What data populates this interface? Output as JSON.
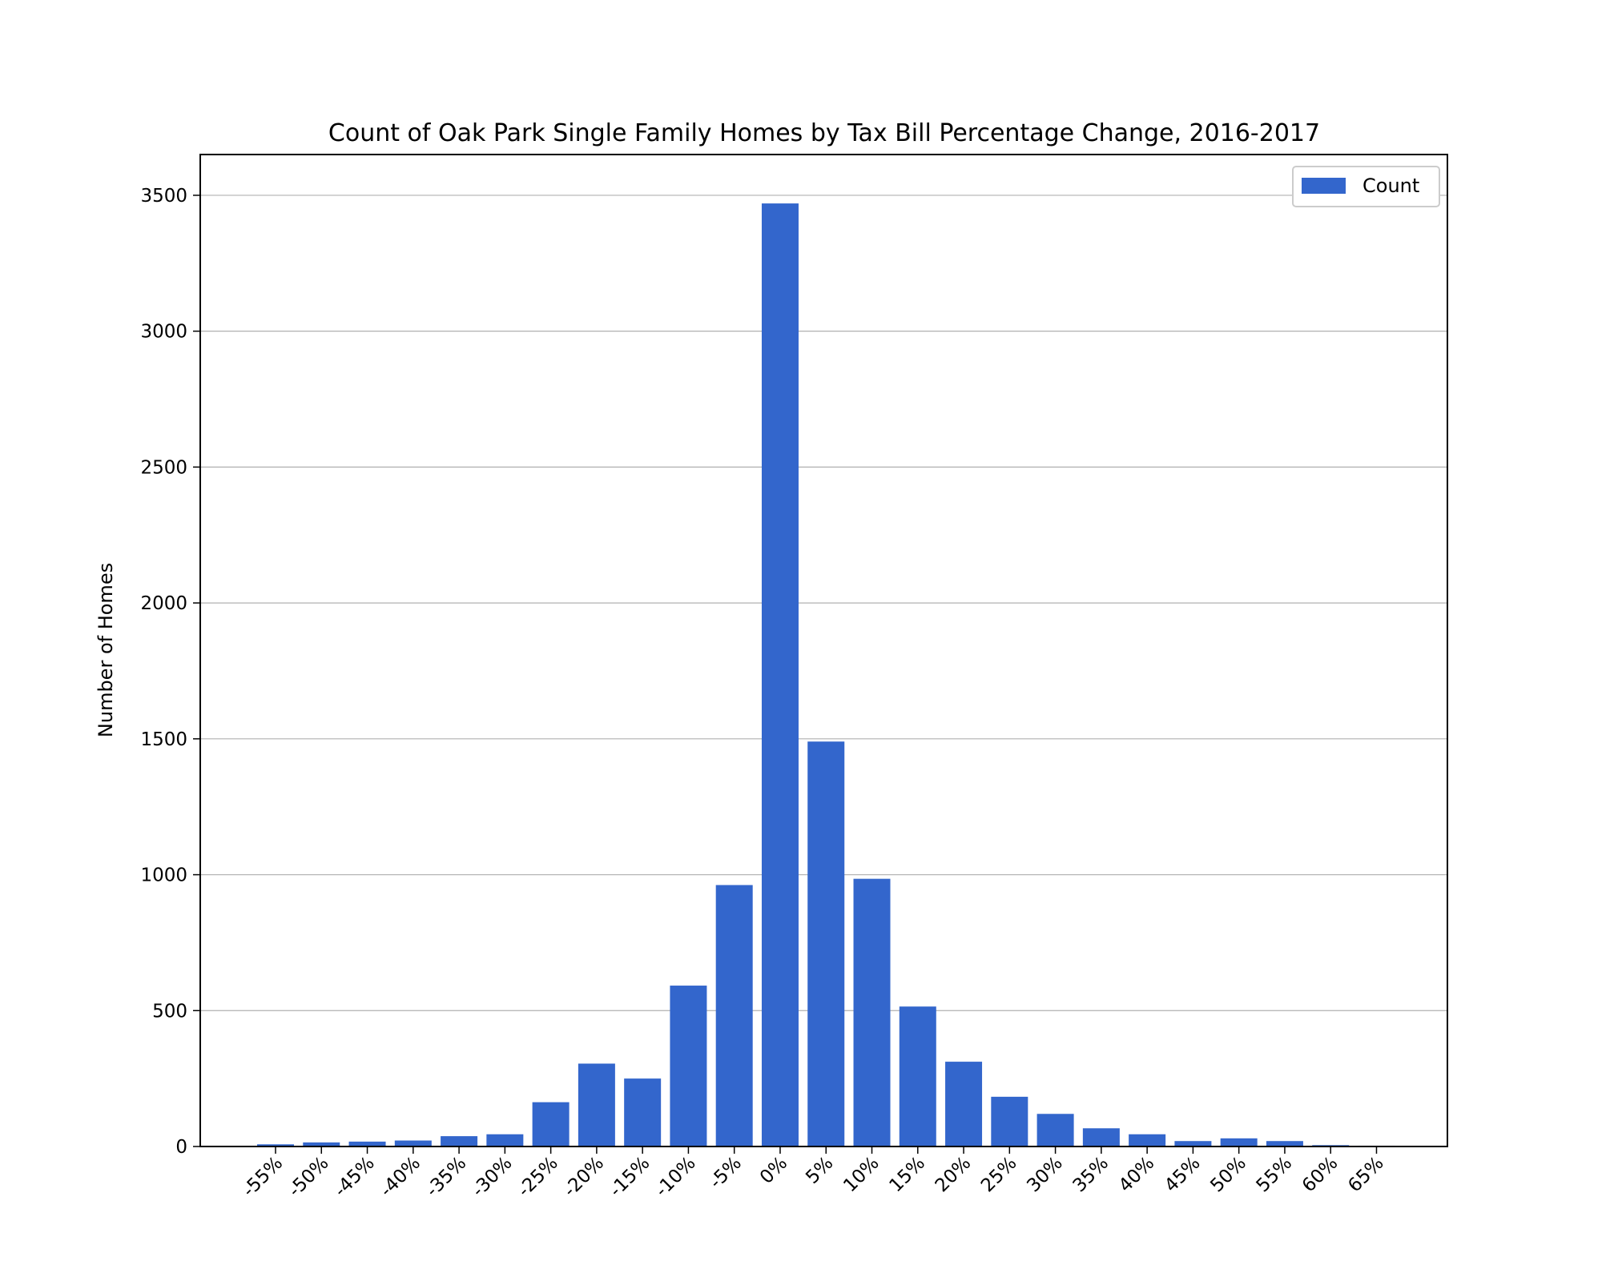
{
  "chart_data": {
    "type": "bar",
    "title": "Count of Oak Park Single Family Homes by Tax Bill Percentage Change, 2016-2017",
    "xlabel": "",
    "ylabel": "Number of Homes",
    "categories": [
      "-55%",
      "-50%",
      "-45%",
      "-40%",
      "-35%",
      "-30%",
      "-25%",
      "-20%",
      "-15%",
      "-10%",
      "-5%",
      "0%",
      "5%",
      "10%",
      "15%",
      "20%",
      "25%",
      "30%",
      "35%",
      "40%",
      "45%",
      "50%",
      "55%",
      "60%",
      "65%"
    ],
    "series": [
      {
        "name": "Count",
        "color": "#3366cc",
        "values": [
          8,
          15,
          18,
          22,
          38,
          45,
          163,
          305,
          250,
          592,
          962,
          3470,
          1490,
          985,
          515,
          312,
          183,
          120,
          67,
          45,
          20,
          30,
          20,
          5,
          3
        ]
      }
    ],
    "ylim": [
      0,
      3650
    ],
    "yticks": [
      0,
      500,
      1000,
      1500,
      2000,
      2500,
      3000,
      3500
    ],
    "grid": "y",
    "legend_position": "top-right"
  }
}
